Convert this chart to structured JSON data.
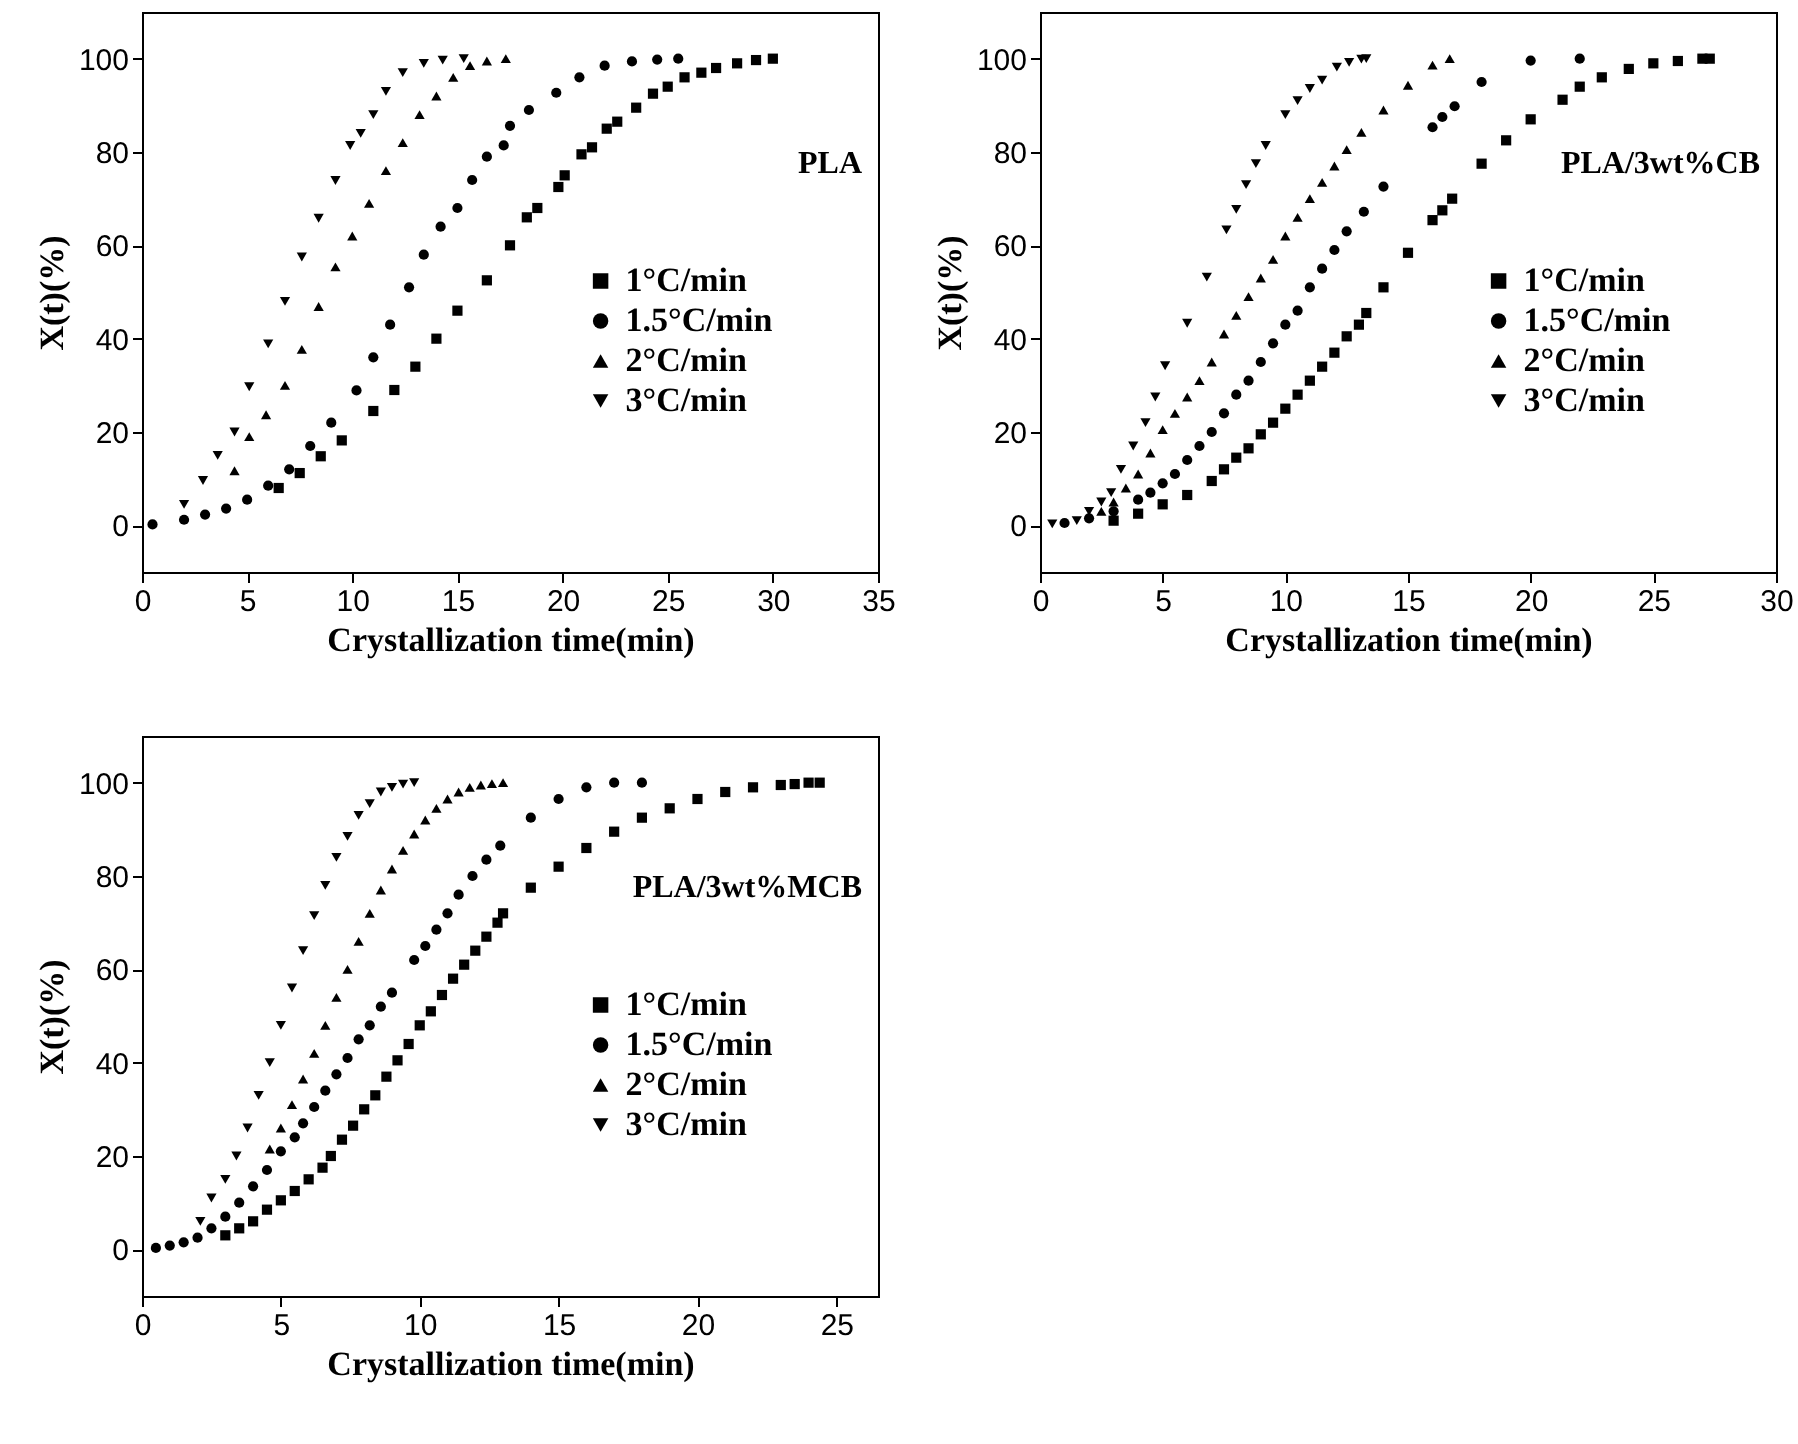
{
  "chart_data": [
    {
      "type": "scatter",
      "xlabel": "Crystallization time(min)",
      "ylabel": "X(t)(%)",
      "annotations": [
        "PLA"
      ],
      "xlim": [
        0,
        35
      ],
      "ylim": [
        -10,
        110
      ],
      "xticks": [
        0,
        5,
        10,
        15,
        20,
        25,
        30,
        35
      ],
      "yticks": [
        0,
        20,
        40,
        60,
        80,
        100
      ],
      "grid": false,
      "legend": "right",
      "series": [
        {
          "name": "1°C/min",
          "color": "#000000",
          "marker": "square",
          "x": [
            6.5,
            7.5,
            8.5,
            9.5,
            11,
            12,
            13,
            14,
            15,
            16.4,
            17.5,
            18.3,
            18.8,
            19.8,
            20.1,
            20.9,
            21.4,
            22.1,
            22.6,
            23.5,
            24.3,
            25,
            25.8,
            26.6,
            27.3,
            28.3,
            29.2,
            30
          ],
          "values": [
            8,
            11.2,
            14.8,
            18.2,
            24.5,
            29,
            34,
            40,
            46,
            52.5,
            60,
            66,
            68,
            72.5,
            75,
            79.5,
            81,
            85,
            86.5,
            89.5,
            92.5,
            94,
            96,
            97,
            98,
            99,
            99.7,
            100
          ]
        },
        {
          "name": "1.5°C/min",
          "color": "#000000",
          "marker": "circle",
          "x": [
            0.5,
            2,
            3,
            4,
            5,
            6,
            7,
            8,
            9,
            10.2,
            11,
            11.8,
            12.7,
            13.4,
            14.2,
            15,
            15.7,
            16.4,
            17.2,
            17.5,
            18.4,
            19.7,
            20.8,
            22,
            23.3,
            24.5,
            25.5
          ],
          "values": [
            0.2,
            1.2,
            2.3,
            3.6,
            5.5,
            8.5,
            12,
            17,
            22,
            28.9,
            36,
            43,
            51,
            58,
            64,
            68,
            74,
            79,
            81.4,
            85.6,
            89,
            92.7,
            96,
            98.5,
            99.4,
            99.8,
            100
          ]
        },
        {
          "name": "2°C/min",
          "color": "#000000",
          "marker": "triangle",
          "x": [
            4.4,
            5.1,
            5.9,
            6.8,
            7.6,
            8.4,
            9.2,
            10,
            10.8,
            11.6,
            12.4,
            13.2,
            14,
            14.8,
            15.6,
            16.4,
            17.3
          ],
          "values": [
            11.7,
            19,
            23.7,
            30,
            37.7,
            46.9,
            55.4,
            62,
            69,
            76,
            82,
            88,
            92,
            96,
            98.5,
            99.5,
            100
          ]
        },
        {
          "name": "3°C/min",
          "color": "#000000",
          "marker": "triangle-down",
          "x": [
            2,
            2.9,
            3.6,
            4.4,
            5.1,
            6,
            6.8,
            7.6,
            8.4,
            9.2,
            9.9,
            10.4,
            11,
            11.6,
            12.4,
            13.4,
            14.3,
            15.3
          ],
          "values": [
            4.5,
            9.6,
            15,
            20,
            29.7,
            38.9,
            48,
            57.5,
            65.8,
            73.9,
            81.4,
            84,
            88,
            93,
            97,
            99,
            99.7,
            100
          ]
        }
      ]
    },
    {
      "type": "scatter",
      "xlabel": "Crystallization time(min)",
      "ylabel": "X(t)(%)",
      "annotations": [
        "PLA/3wt%CB"
      ],
      "xlim": [
        0,
        30
      ],
      "ylim": [
        -10,
        110
      ],
      "xticks": [
        0,
        5,
        10,
        15,
        20,
        25,
        30
      ],
      "yticks": [
        0,
        20,
        40,
        60,
        80,
        100
      ],
      "grid": false,
      "legend": "right",
      "series": [
        {
          "name": "1°C/min",
          "color": "#000000",
          "marker": "square",
          "x": [
            3,
            4,
            5,
            6,
            7,
            7.5,
            8,
            8.5,
            9,
            9.5,
            10,
            10.5,
            11,
            11.5,
            12,
            12.5,
            13,
            13.3,
            14,
            15,
            16,
            16.4,
            16.8,
            18,
            19,
            20,
            21.3,
            22,
            22.9,
            24,
            25,
            26,
            27,
            27.3
          ],
          "values": [
            1,
            2.5,
            4.5,
            6.5,
            9.5,
            12,
            14.5,
            16.5,
            19.5,
            22,
            25,
            28,
            31,
            34,
            37,
            40.5,
            43,
            45.5,
            51,
            58.4,
            65.4,
            67.5,
            70,
            77.5,
            82.5,
            87,
            91.2,
            94,
            96,
            97.8,
            99,
            99.5,
            100,
            100
          ]
        },
        {
          "name": "1.5°C/min",
          "color": "#000000",
          "marker": "circle",
          "x": [
            1,
            2,
            3,
            4,
            4.5,
            5,
            5.5,
            6,
            6.5,
            7,
            7.5,
            8,
            8.5,
            9,
            9.5,
            10,
            10.5,
            11,
            11.5,
            12,
            12.5,
            13.2,
            14,
            16,
            16.4,
            16.9,
            18,
            20,
            22
          ],
          "values": [
            0.5,
            1.5,
            3,
            5.5,
            7,
            9,
            11,
            14,
            17,
            20,
            24,
            28,
            31,
            35,
            39,
            43,
            46,
            51,
            55,
            59,
            63,
            67.2,
            72.6,
            85.3,
            87.5,
            89.8,
            95,
            99.6,
            100
          ]
        },
        {
          "name": "2°C/min",
          "color": "#000000",
          "marker": "triangle",
          "x": [
            2.5,
            3,
            3.5,
            4,
            4.5,
            5,
            5.5,
            6,
            6.5,
            7,
            7.5,
            8,
            8.5,
            9,
            9.5,
            10,
            10.5,
            11,
            11.5,
            12,
            12.5,
            13.1,
            14,
            15,
            16,
            16.7
          ],
          "values": [
            3,
            5,
            8,
            11,
            15.5,
            20.5,
            24,
            27.5,
            31,
            35,
            41,
            45,
            49,
            53,
            57,
            62,
            66,
            70,
            73.5,
            77,
            80.5,
            84.2,
            89,
            94.3,
            98.6,
            100
          ]
        },
        {
          "name": "3°C/min",
          "color": "#000000",
          "marker": "triangle-down",
          "x": [
            0.5,
            1.5,
            2,
            2.5,
            2.9,
            3.3,
            3.8,
            4.3,
            4.7,
            5.1,
            6,
            6.8,
            7.6,
            8,
            8.4,
            8.8,
            9.2,
            10,
            10.5,
            11,
            11.5,
            12.1,
            12.6,
            13.1,
            13.3
          ],
          "values": [
            0.3,
            1,
            3,
            5,
            7,
            12,
            17,
            22,
            27.5,
            34.2,
            43.3,
            53.2,
            63.3,
            67.7,
            73,
            77.5,
            81.4,
            88,
            91,
            93.6,
            95.4,
            98.2,
            99.2,
            99.9,
            100
          ]
        }
      ]
    },
    {
      "type": "scatter",
      "xlabel": "Crystallization time(min)",
      "ylabel": "X(t)(%)",
      "annotations": [
        "PLA/3wt%MCB"
      ],
      "xlim": [
        0,
        26.5
      ],
      "ylim": [
        -10,
        110
      ],
      "xticks": [
        0,
        5,
        10,
        15,
        20,
        25
      ],
      "yticks": [
        0,
        20,
        40,
        60,
        80,
        100
      ],
      "grid": false,
      "legend": "right",
      "series": [
        {
          "name": "1°C/min",
          "color": "#000000",
          "marker": "square",
          "x": [
            3,
            3.5,
            4,
            4.5,
            5,
            5.5,
            6,
            6.5,
            6.8,
            7.2,
            7.6,
            8,
            8.4,
            8.8,
            9.2,
            9.6,
            10,
            10.4,
            10.8,
            11.2,
            11.6,
            12,
            12.4,
            12.8,
            13,
            14,
            15,
            16,
            17,
            18,
            19,
            20,
            21,
            22,
            23,
            23.5,
            24,
            24.4
          ],
          "values": [
            3,
            4.5,
            6,
            8.5,
            10.5,
            12.5,
            15,
            17.5,
            20,
            23.5,
            26.5,
            30,
            33,
            37,
            40.5,
            44,
            48,
            51,
            54.5,
            58,
            61,
            64,
            67,
            70,
            72,
            77.5,
            82,
            86,
            89.5,
            92.5,
            94.5,
            96.5,
            98,
            99,
            99.5,
            99.7,
            100,
            100
          ]
        },
        {
          "name": "1.5°C/min",
          "color": "#000000",
          "marker": "circle",
          "x": [
            0.5,
            1,
            1.5,
            2,
            2.5,
            3,
            3.5,
            4,
            4.5,
            5,
            5.5,
            5.8,
            6.2,
            6.6,
            7,
            7.4,
            7.8,
            8.2,
            8.6,
            9,
            9.8,
            10.2,
            10.6,
            11,
            11.4,
            11.9,
            12.4,
            12.9,
            14,
            15,
            16,
            17,
            18
          ],
          "values": [
            0.3,
            0.8,
            1.5,
            2.5,
            4.5,
            7,
            10,
            13.5,
            17,
            21,
            24,
            27,
            30.5,
            34,
            37.5,
            41,
            45,
            48,
            52,
            55,
            62,
            65,
            68.5,
            72,
            76,
            80,
            83.5,
            86.5,
            92.5,
            96.5,
            99,
            100,
            100
          ]
        },
        {
          "name": "2°C/min",
          "color": "#000000",
          "marker": "triangle",
          "x": [
            4.6,
            5,
            5.4,
            5.8,
            6.2,
            6.6,
            7,
            7.4,
            7.8,
            8.2,
            8.6,
            9,
            9.4,
            9.8,
            10.2,
            10.6,
            11,
            11.4,
            11.8,
            12.2,
            12.6,
            13
          ],
          "values": [
            21.5,
            26,
            31,
            36.5,
            42,
            48,
            54,
            60,
            66,
            72,
            77,
            81.5,
            85.5,
            89,
            92,
            94.5,
            96.5,
            98,
            99,
            99.5,
            99.8,
            100
          ]
        },
        {
          "name": "3°C/min",
          "color": "#000000",
          "marker": "triangle-down",
          "x": [
            2.1,
            2.5,
            3,
            3.4,
            3.8,
            4.2,
            4.6,
            5,
            5.4,
            5.8,
            6.2,
            6.6,
            7,
            7.4,
            7.8,
            8.2,
            8.6,
            9,
            9.4,
            9.8
          ],
          "values": [
            6,
            11,
            15,
            20,
            26,
            33,
            40,
            48,
            56,
            64,
            71.5,
            78,
            84,
            88.5,
            93,
            95.5,
            98,
            99,
            99.7,
            100
          ]
        }
      ]
    }
  ]
}
